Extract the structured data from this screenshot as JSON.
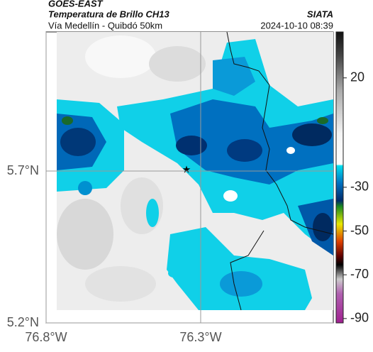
{
  "header": {
    "title": "GOES-EAST",
    "subtitle": "Temperatura de Brillo CH13",
    "route": "Vía Medellín - Quibdó 50km",
    "source": "SIATA",
    "datetime": "2024-10-10 08:39"
  },
  "map": {
    "xlim": [
      -76.8,
      -75.871
    ],
    "ylim": [
      5.2,
      6.158
    ],
    "xticks": [
      {
        "value": -76.8,
        "label": "76.8°W"
      },
      {
        "value": -76.3,
        "label": "76.3°W"
      }
    ],
    "yticks": [
      {
        "value": 5.2,
        "label": "5.2°N"
      },
      {
        "value": 5.7,
        "label": "5.7°N"
      }
    ]
  },
  "colorbar": {
    "lim": [
      -92,
      41
    ],
    "ticks": [
      20,
      -30,
      -50,
      -70,
      -90
    ]
  }
}
